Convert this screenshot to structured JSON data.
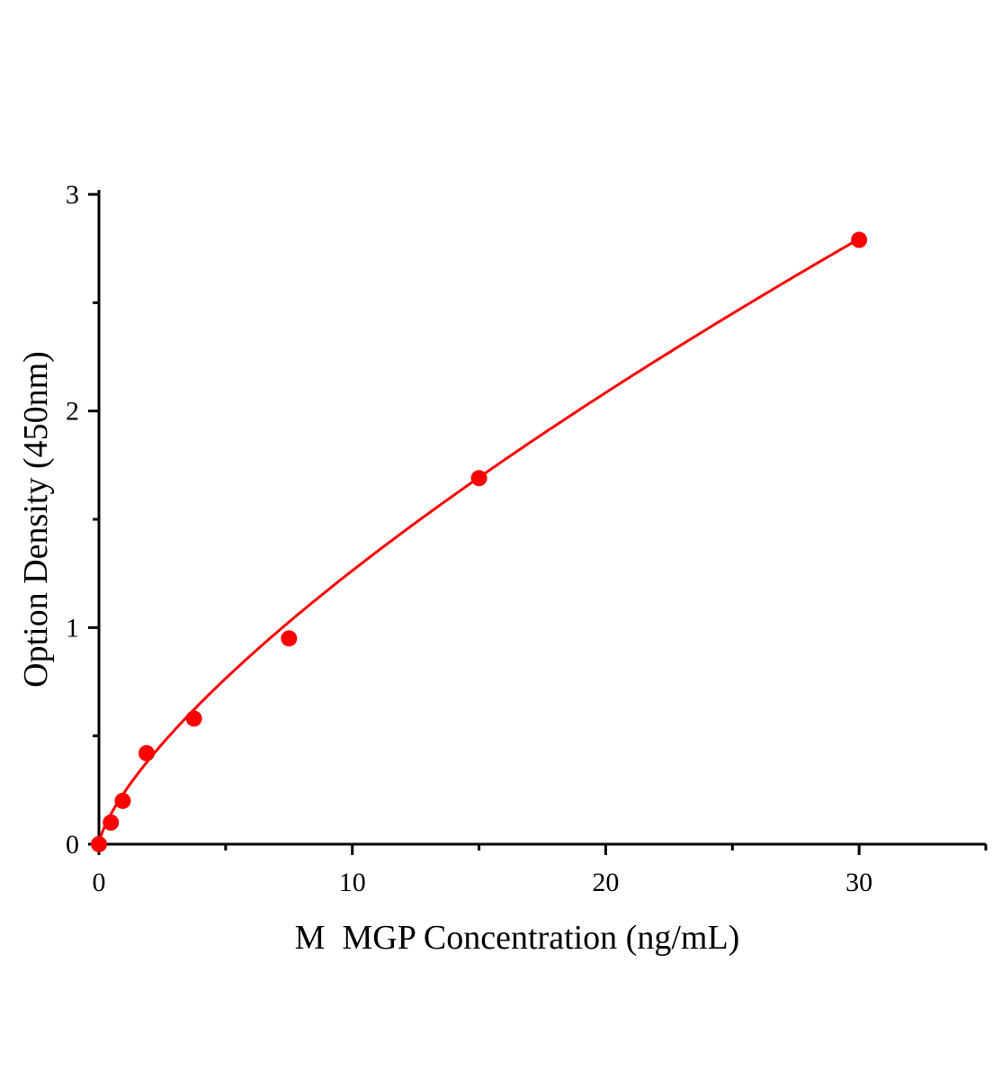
{
  "chart_data": {
    "type": "scatter",
    "title": "",
    "xlabel": "M  MGP Concentration (ng/mL)",
    "ylabel": "Option Density (450nm)",
    "xlim": [
      0,
      35
    ],
    "ylim": [
      0,
      3
    ],
    "x_ticks": [
      0,
      10,
      20,
      30
    ],
    "x_tick_labels": [
      "0",
      "10",
      "20",
      "30"
    ],
    "x_minor_ticks": [
      5,
      15,
      25,
      35
    ],
    "y_ticks": [
      0,
      1,
      2,
      3
    ],
    "y_tick_labels": [
      "0",
      "1",
      "2",
      "3"
    ],
    "y_minor_ticks": [
      0.5,
      1.5,
      2.5
    ],
    "grid": false,
    "legend": "none",
    "series": [
      {
        "x": [
          0,
          0.47,
          0.94,
          1.88,
          3.75,
          7.5,
          15,
          30
        ],
        "y": [
          0,
          0.1,
          0.2,
          0.42,
          0.58,
          0.95,
          1.69,
          2.79
        ],
        "marker": "circle",
        "fit_line": true,
        "color": "#ff0000"
      }
    ]
  }
}
